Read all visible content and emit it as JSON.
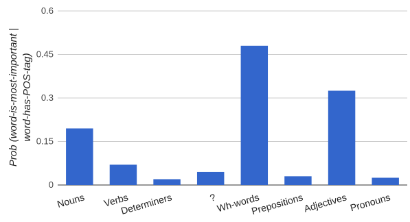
{
  "chart_data": {
    "type": "bar",
    "title": "",
    "xlabel": "",
    "ylabel_lines": [
      "Prob (word-is-most-important |",
      "word-has-POS-tag)"
    ],
    "categories": [
      "Nouns",
      "Verbs",
      "Determiners",
      "?",
      "Wh-words",
      "Prepositions",
      "Adjectives",
      "Pronouns"
    ],
    "values": [
      0.195,
      0.07,
      0.02,
      0.045,
      0.48,
      0.03,
      0.325,
      0.025
    ],
    "ylim": [
      0,
      0.6
    ],
    "yticks": [
      0,
      0.15,
      0.3,
      0.45,
      0.6
    ],
    "ytick_labels": [
      "0",
      "0.15",
      "0.3",
      "0.45",
      "0.6"
    ],
    "grid": true,
    "legend": "none",
    "bar_color": "#3366cc",
    "grid_color": "#cccccc"
  }
}
